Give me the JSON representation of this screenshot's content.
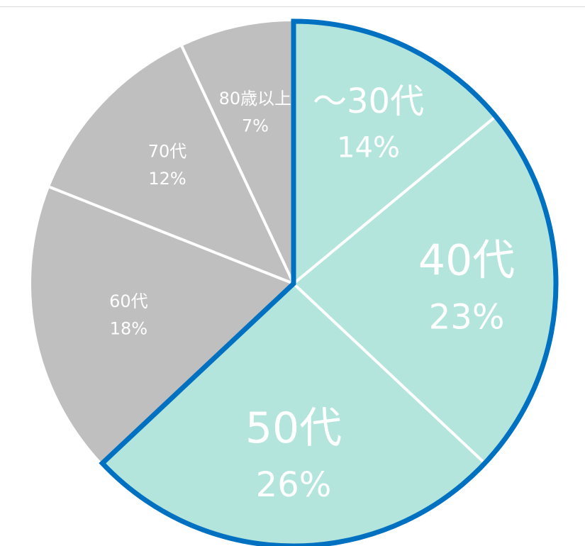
{
  "chart_data": {
    "type": "pie",
    "slices": [
      {
        "label": "～30代",
        "value": 14,
        "percent_label": "14%",
        "color": "#b3e5dc",
        "highlight": true
      },
      {
        "label": "40代",
        "value": 23,
        "percent_label": "23%",
        "color": "#b3e5dc",
        "highlight": true
      },
      {
        "label": "50代",
        "value": 26,
        "percent_label": "26%",
        "color": "#b3e5dc",
        "highlight": true
      },
      {
        "label": "60代",
        "value": 18,
        "percent_label": "18%",
        "color": "#bfbfbf",
        "highlight": false
      },
      {
        "label": "70代",
        "value": 12,
        "percent_label": "12%",
        "color": "#bfbfbf",
        "highlight": false
      },
      {
        "label": "80歳以上",
        "value": 7,
        "percent_label": "7%",
        "color": "#bfbfbf",
        "highlight": false
      }
    ],
    "start_angle": "12 o'clock",
    "direction": "clockwise",
    "highlight_outline_color": "#0070c0",
    "separator_color": "#ffffff",
    "legend": "none"
  }
}
